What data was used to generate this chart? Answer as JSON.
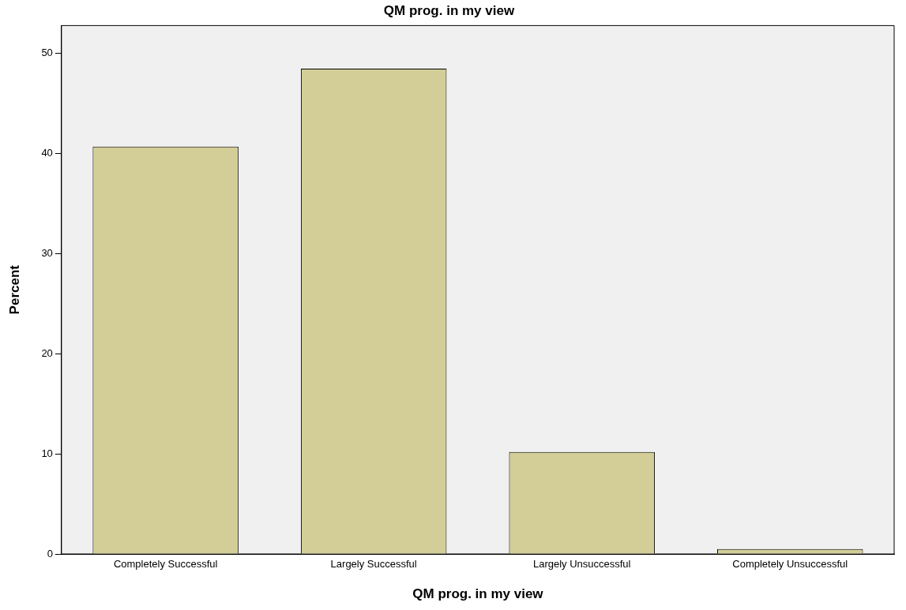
{
  "chart_data": {
    "type": "bar",
    "title": "QM prog. in my view",
    "xlabel": "QM prog. in my view",
    "ylabel": "Percent",
    "categories": [
      "Completely Successful",
      "Largely Successful",
      "Largely Unsuccessful",
      "Completely Unsuccessful"
    ],
    "values": [
      40.7,
      48.5,
      10.2,
      0.5
    ],
    "color": "#d3ce97",
    "ylim": [
      0,
      52.8
    ],
    "yticks": [
      0,
      10,
      20,
      30,
      40,
      50
    ],
    "grid": false,
    "legend": false
  }
}
